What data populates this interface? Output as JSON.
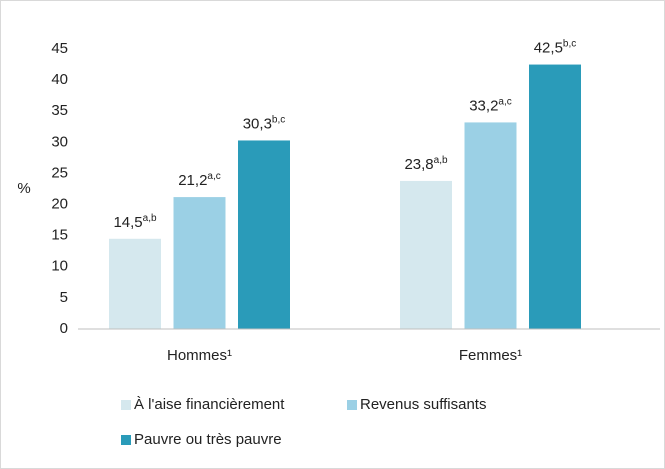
{
  "chart_data": {
    "type": "bar",
    "y_label": "%",
    "categories": [
      "Hommes¹",
      "Femmes¹"
    ],
    "series": [
      {
        "name": "À l'aise financièrement",
        "color": "#d5e8ee",
        "values": [
          14.5,
          23.8
        ],
        "value_labels": [
          "14,5",
          "23,8"
        ],
        "value_label_notes": [
          "a,b",
          "a,b"
        ]
      },
      {
        "name": "Revenus suffisants",
        "color": "#9bd0e5",
        "values": [
          21.2,
          33.2
        ],
        "value_labels": [
          "21,2",
          "33,2"
        ],
        "value_label_notes": [
          "a,c",
          "a,c"
        ]
      },
      {
        "name": "Pauvre ou très pauvre",
        "color": "#2a9bb9",
        "values": [
          30.3,
          42.5
        ],
        "value_labels": [
          "30,3",
          "42,5"
        ],
        "value_label_notes": [
          "b,c",
          "b,c"
        ]
      }
    ],
    "ylim": [
      0,
      45
    ],
    "yticks": [
      0,
      5,
      10,
      15,
      20,
      25,
      30,
      35,
      40,
      45
    ],
    "grid": false,
    "legend": "bottom"
  }
}
